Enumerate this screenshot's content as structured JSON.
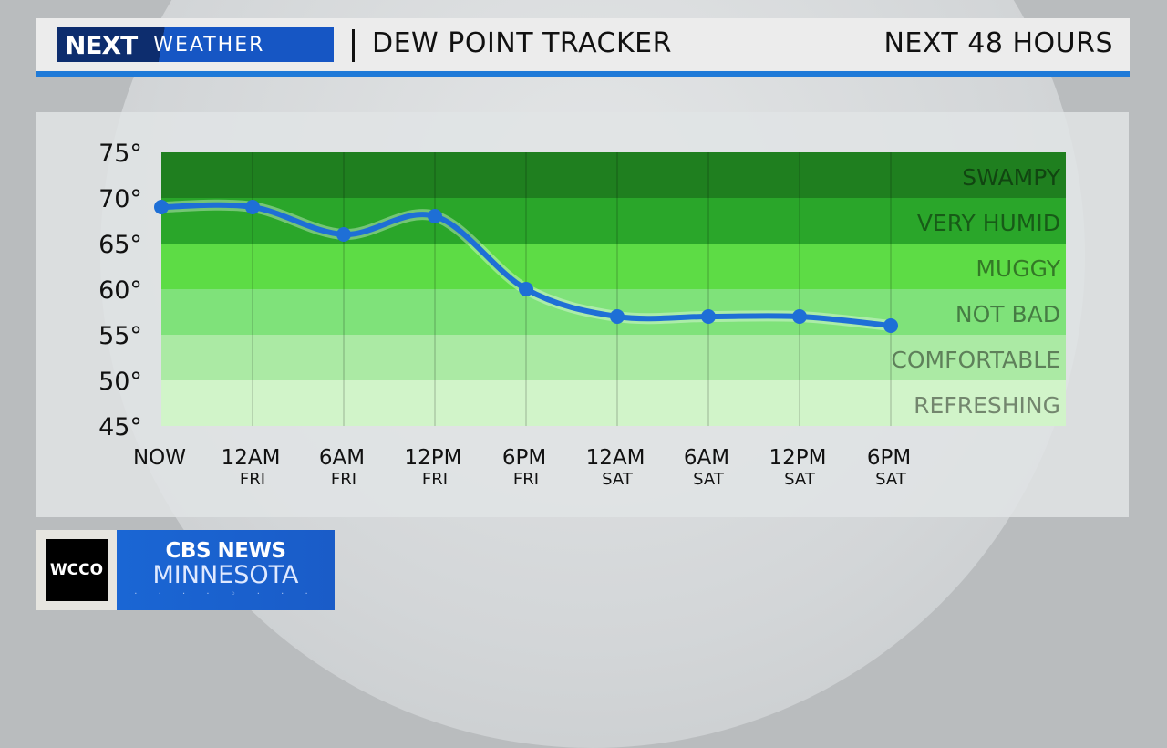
{
  "header": {
    "logo_next": "NEXT",
    "logo_weather": "WEATHER",
    "title": "DEW POINT TRACKER",
    "range": "NEXT 48 HOURS"
  },
  "branding": {
    "station": "WCCO",
    "network": "CBS NEWS",
    "region": "MINNESOTA"
  },
  "colors": {
    "line": "#1e6fd6",
    "accent": "#1f7ad8"
  },
  "chart_data": {
    "type": "line",
    "ylim": [
      45,
      75
    ],
    "yticks": [
      "45°",
      "50°",
      "55°",
      "60°",
      "65°",
      "70°",
      "75°"
    ],
    "categories": [
      [
        "NOW",
        ""
      ],
      [
        "12AM",
        "FRI"
      ],
      [
        "6AM",
        "FRI"
      ],
      [
        "12PM",
        "FRI"
      ],
      [
        "6PM",
        "FRI"
      ],
      [
        "12AM",
        "SAT"
      ],
      [
        "6AM",
        "SAT"
      ],
      [
        "12PM",
        "SAT"
      ],
      [
        "6PM",
        "SAT"
      ]
    ],
    "values": [
      69,
      69,
      66,
      68,
      60,
      57,
      57,
      57,
      56
    ],
    "grid": true,
    "bands": [
      {
        "label": "SWAMPY",
        "from": 70,
        "to": 75,
        "color": "#1f7f1f"
      },
      {
        "label": "VERY HUMID",
        "from": 65,
        "to": 70,
        "color": "#2aa62a"
      },
      {
        "label": "MUGGY",
        "from": 60,
        "to": 65,
        "color": "#5ddc45"
      },
      {
        "label": "NOT BAD",
        "from": 55,
        "to": 60,
        "color": "#7fe27a"
      },
      {
        "label": "COMFORTABLE",
        "from": 50,
        "to": 55,
        "color": "#abeaa4"
      },
      {
        "label": "REFRESHING",
        "from": 45,
        "to": 50,
        "color": "#d1f4c9"
      }
    ]
  }
}
